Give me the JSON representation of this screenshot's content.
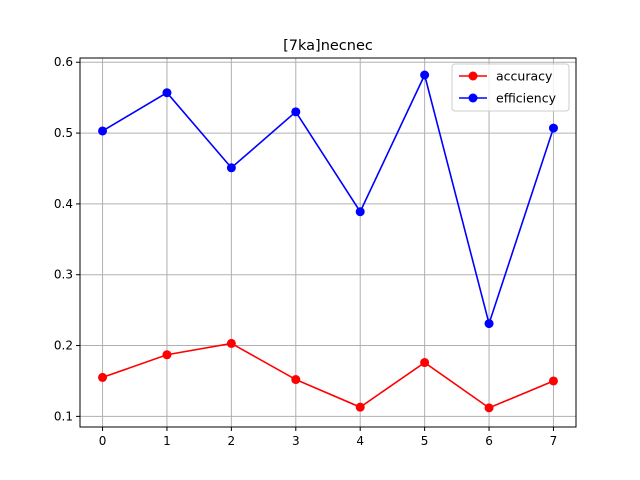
{
  "chart_data": {
    "type": "line",
    "title": "[7ka]necnec",
    "xlabel": "",
    "ylabel": "",
    "x": [
      0,
      1,
      2,
      3,
      4,
      5,
      6,
      7
    ],
    "xlim": [
      -0.35,
      7.35
    ],
    "ylim": [
      0.085,
      0.606
    ],
    "xticks": [
      0,
      1,
      2,
      3,
      4,
      5,
      6,
      7
    ],
    "yticks": [
      0.1,
      0.2,
      0.3,
      0.4,
      0.5,
      0.6
    ],
    "ytick_labels": [
      "0.1",
      "0.2",
      "0.3",
      "0.4",
      "0.5",
      "0.6"
    ],
    "grid": true,
    "legend_position": "top-right",
    "series": [
      {
        "name": "accuracy",
        "color": "#ff0000",
        "marker": "circle",
        "values": [
          0.155,
          0.187,
          0.203,
          0.152,
          0.113,
          0.176,
          0.112,
          0.15
        ]
      },
      {
        "name": "efficiency",
        "color": "#0000ff",
        "marker": "circle",
        "values": [
          0.503,
          0.557,
          0.451,
          0.53,
          0.389,
          0.582,
          0.231,
          0.507
        ]
      }
    ]
  }
}
